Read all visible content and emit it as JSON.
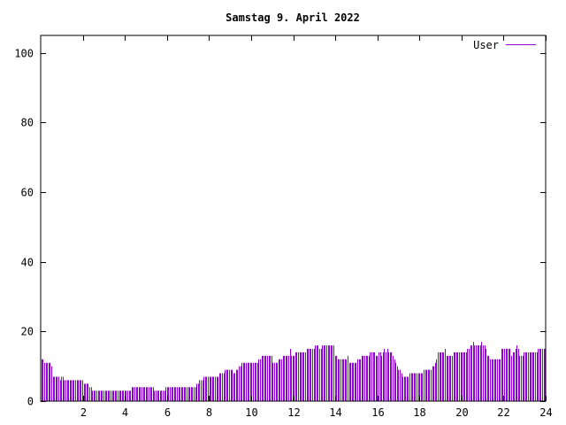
{
  "chart_data": {
    "type": "bar",
    "title": "Samstag 9. April 2022",
    "xlabel": "",
    "ylabel": "",
    "xlim": [
      0,
      24
    ],
    "ylim": [
      0,
      105
    ],
    "x_ticks": [
      2,
      4,
      6,
      8,
      10,
      12,
      14,
      16,
      18,
      20,
      22,
      24
    ],
    "y_ticks": [
      0,
      20,
      40,
      60,
      80,
      100
    ],
    "grid": false,
    "legend_position": "top-right",
    "series": [
      {
        "name": "User",
        "color": "#9400d3",
        "values": [
          12,
          12,
          11,
          11,
          11,
          11,
          11,
          10,
          7,
          7,
          7,
          7,
          7,
          6,
          7,
          7,
          6,
          6,
          6,
          6,
          6,
          6,
          6,
          6,
          6,
          6,
          6,
          6,
          6,
          6,
          5,
          5,
          5,
          5,
          4,
          4,
          3,
          3,
          3,
          3,
          3,
          3,
          3,
          3,
          3,
          3,
          3,
          3,
          3,
          3,
          3,
          3,
          3,
          3,
          3,
          3,
          3,
          3,
          3,
          3,
          3,
          3,
          3,
          3,
          4,
          4,
          4,
          4,
          4,
          4,
          4,
          4,
          4,
          4,
          4,
          4,
          4,
          4,
          4,
          4,
          3,
          3,
          3,
          3,
          3,
          3,
          3,
          3,
          4,
          4,
          4,
          4,
          4,
          4,
          4,
          4,
          4,
          4,
          4,
          4,
          4,
          4,
          4,
          4,
          4,
          4,
          4,
          4,
          4,
          4,
          5,
          5,
          6,
          6,
          6,
          7,
          7,
          7,
          7,
          7,
          7,
          7,
          7,
          7,
          7,
          7,
          8,
          8,
          8,
          8,
          9,
          9,
          9,
          9,
          9,
          9,
          8,
          8,
          9,
          9,
          10,
          10,
          11,
          11,
          11,
          11,
          11,
          11,
          11,
          11,
          11,
          11,
          11,
          11,
          12,
          12,
          13,
          13,
          13,
          13,
          13,
          13,
          13,
          13,
          11,
          11,
          11,
          11,
          12,
          12,
          12,
          13,
          13,
          13,
          13,
          13,
          15,
          13,
          13,
          13,
          14,
          14,
          14,
          14,
          14,
          14,
          14,
          14,
          15,
          15,
          15,
          15,
          15,
          15,
          16,
          16,
          16,
          15,
          15,
          16,
          16,
          16,
          16,
          16,
          16,
          16,
          16,
          16,
          13,
          13,
          12,
          12,
          12,
          12,
          12,
          12,
          12,
          13,
          11,
          11,
          11,
          11,
          11,
          11,
          12,
          12,
          12,
          13,
          13,
          13,
          13,
          13,
          13,
          14,
          14,
          14,
          14,
          13,
          13,
          14,
          14,
          13,
          14,
          15,
          14,
          15,
          14,
          14,
          14,
          13,
          12,
          11,
          10,
          9,
          9,
          8,
          7,
          7,
          7,
          7,
          7,
          8,
          8,
          8,
          8,
          8,
          8,
          8,
          8,
          8,
          8,
          9,
          9,
          9,
          9,
          9,
          9,
          10,
          10,
          11,
          12,
          14,
          14,
          14,
          14,
          14,
          15,
          13,
          13,
          13,
          13,
          13,
          14,
          14,
          14,
          14,
          14,
          14,
          14,
          14,
          14,
          14,
          15,
          15,
          16,
          16,
          17,
          16,
          16,
          16,
          16,
          16,
          17,
          16,
          16,
          15,
          13,
          13,
          12,
          12,
          12,
          12,
          12,
          12,
          12,
          12,
          15,
          15,
          15,
          15,
          15,
          15,
          15,
          13,
          14,
          14,
          15,
          16,
          15,
          13,
          13,
          13,
          14,
          14,
          14,
          14,
          14,
          14,
          14,
          14,
          14,
          14,
          15,
          15,
          15,
          15,
          15,
          15
        ]
      }
    ]
  }
}
